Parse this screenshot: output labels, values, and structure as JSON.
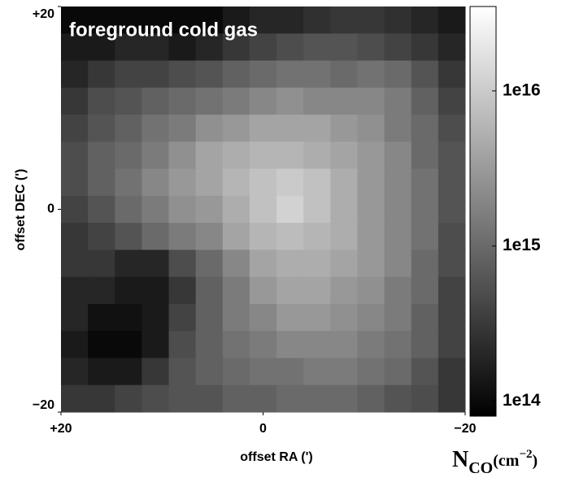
{
  "chart_data": {
    "type": "heatmap",
    "title": "foreground cold gas",
    "x_label": "offset RA (')",
    "y_label": "offset DEC (')",
    "xlim": [
      20,
      -20
    ],
    "ylim": [
      -20,
      20
    ],
    "xticks": [
      {
        "value": 20,
        "label": "+20"
      },
      0,
      {
        "value": -20,
        "label": "−20"
      }
    ],
    "yticks": [
      {
        "value": -20,
        "label": "−20"
      },
      0,
      {
        "value": 20,
        "label": "+20"
      }
    ],
    "colorbar_label": [
      "N",
      "CO",
      "(cm",
      "−2",
      ")"
    ],
    "zlim": [
      80000000000000.0,
      3.5e+16
    ],
    "zscale": "log",
    "colormap": "gray",
    "zticks": [
      {
        "value": 100000000000000.0,
        "label": "1e14"
      },
      {
        "value": 1000000000000000.0,
        "label": "1e15"
      },
      {
        "value": 1e+16,
        "label": "1e16"
      }
    ],
    "z": [
      [
        100000000000000.0,
        100000000000000.0,
        100000000000000.0,
        100000000000000.0,
        100000000000000.0,
        100000000000000.0,
        150000000000000.0,
        200000000000000.0,
        200000000000000.0,
        250000000000000.0,
        300000000000000.0,
        300000000000000.0,
        250000000000000.0,
        200000000000000.0,
        150000000000000.0
      ],
      [
        150000000000000.0,
        150000000000000.0,
        200000000000000.0,
        200000000000000.0,
        150000000000000.0,
        200000000000000.0,
        300000000000000.0,
        400000000000000.0,
        500000000000000.0,
        600000000000000.0,
        600000000000000.0,
        500000000000000.0,
        400000000000000.0,
        300000000000000.0,
        200000000000000.0
      ],
      [
        200000000000000.0,
        300000000000000.0,
        400000000000000.0,
        400000000000000.0,
        500000000000000.0,
        600000000000000.0,
        800000000000000.0,
        1000000000000000.0,
        1200000000000000.0,
        1200000000000000.0,
        1000000000000000.0,
        1200000000000000.0,
        1000000000000000.0,
        600000000000000.0,
        300000000000000.0
      ],
      [
        300000000000000.0,
        500000000000000.0,
        600000000000000.0,
        800000000000000.0,
        1000000000000000.0,
        1200000000000000.0,
        1500000000000000.0,
        2000000000000000.0,
        2500000000000000.0,
        2000000000000000.0,
        2000000000000000.0,
        2000000000000000.0,
        1500000000000000.0,
        800000000000000.0,
        400000000000000.0
      ],
      [
        400000000000000.0,
        600000000000000.0,
        800000000000000.0,
        1200000000000000.0,
        1500000000000000.0,
        2500000000000000.0,
        3000000000000000.0,
        4000000000000000.0,
        4000000000000000.0,
        4000000000000000.0,
        3000000000000000.0,
        2500000000000000.0,
        1500000000000000.0,
        1000000000000000.0,
        500000000000000.0
      ],
      [
        500000000000000.0,
        800000000000000.0,
        1000000000000000.0,
        1500000000000000.0,
        2500000000000000.0,
        4000000000000000.0,
        5000000000000000.0,
        6000000000000000.0,
        6000000000000000.0,
        5000000000000000.0,
        4000000000000000.0,
        3000000000000000.0,
        2000000000000000.0,
        1000000000000000.0,
        600000000000000.0
      ],
      [
        500000000000000.0,
        800000000000000.0,
        1200000000000000.0,
        2000000000000000.0,
        3000000000000000.0,
        4000000000000000.0,
        6000000000000000.0,
        8000000000000000.0,
        1e+16,
        8000000000000000.0,
        5000000000000000.0,
        3000000000000000.0,
        2000000000000000.0,
        1200000000000000.0,
        600000000000000.0
      ],
      [
        400000000000000.0,
        600000000000000.0,
        1000000000000000.0,
        1500000000000000.0,
        2500000000000000.0,
        3000000000000000.0,
        5000000000000000.0,
        8000000000000000.0,
        1.2e+16,
        8000000000000000.0,
        5000000000000000.0,
        3000000000000000.0,
        2000000000000000.0,
        1200000000000000.0,
        600000000000000.0
      ],
      [
        300000000000000.0,
        400000000000000.0,
        600000000000000.0,
        1000000000000000.0,
        1500000000000000.0,
        2000000000000000.0,
        4000000000000000.0,
        6000000000000000.0,
        7000000000000000.0,
        6000000000000000.0,
        5000000000000000.0,
        3000000000000000.0,
        2000000000000000.0,
        1200000000000000.0,
        500000000000000.0
      ],
      [
        300000000000000.0,
        300000000000000.0,
        200000000000000.0,
        200000000000000.0,
        500000000000000.0,
        1000000000000000.0,
        2000000000000000.0,
        4000000000000000.0,
        5000000000000000.0,
        5000000000000000.0,
        4000000000000000.0,
        3000000000000000.0,
        2000000000000000.0,
        1000000000000000.0,
        500000000000000.0
      ],
      [
        200000000000000.0,
        200000000000000.0,
        150000000000000.0,
        150000000000000.0,
        300000000000000.0,
        800000000000000.0,
        1500000000000000.0,
        3000000000000000.0,
        4000000000000000.0,
        4000000000000000.0,
        3000000000000000.0,
        2500000000000000.0,
        1500000000000000.0,
        1000000000000000.0,
        400000000000000.0
      ],
      [
        200000000000000.0,
        120000000000000.0,
        120000000000000.0,
        150000000000000.0,
        400000000000000.0,
        800000000000000.0,
        1500000000000000.0,
        2000000000000000.0,
        3000000000000000.0,
        3000000000000000.0,
        2500000000000000.0,
        2000000000000000.0,
        1500000000000000.0,
        800000000000000.0,
        400000000000000.0
      ],
      [
        150000000000000.0,
        100000000000000.0,
        100000000000000.0,
        150000000000000.0,
        500000000000000.0,
        800000000000000.0,
        1200000000000000.0,
        1500000000000000.0,
        2000000000000000.0,
        2000000000000000.0,
        2000000000000000.0,
        1500000000000000.0,
        1200000000000000.0,
        800000000000000.0,
        400000000000000.0
      ],
      [
        200000000000000.0,
        150000000000000.0,
        150000000000000.0,
        300000000000000.0,
        600000000000000.0,
        800000000000000.0,
        1000000000000000.0,
        1200000000000000.0,
        1200000000000000.0,
        1500000000000000.0,
        1500000000000000.0,
        1200000000000000.0,
        1000000000000000.0,
        600000000000000.0,
        300000000000000.0
      ],
      [
        300000000000000.0,
        300000000000000.0,
        400000000000000.0,
        500000000000000.0,
        600000000000000.0,
        600000000000000.0,
        800000000000000.0,
        800000000000000.0,
        1000000000000000.0,
        1000000000000000.0,
        1000000000000000.0,
        800000000000000.0,
        600000000000000.0,
        500000000000000.0,
        300000000000000.0
      ]
    ]
  }
}
